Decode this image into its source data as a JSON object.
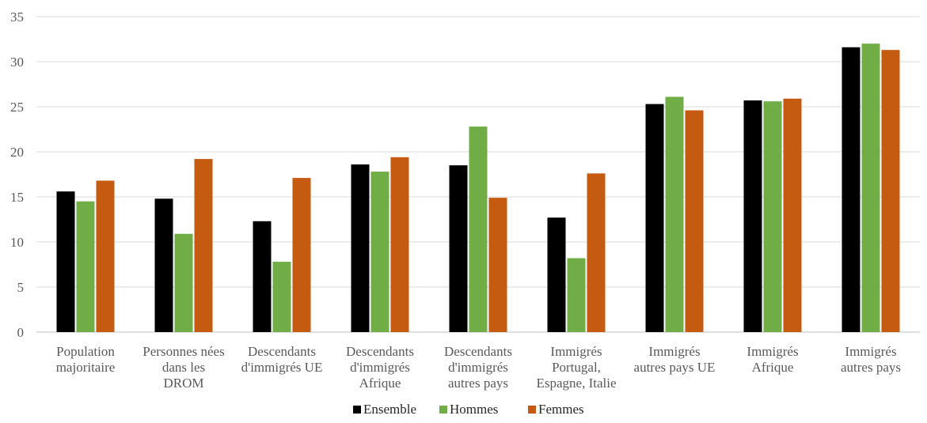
{
  "chart_data": {
    "type": "bar",
    "categories": [
      [
        "Population",
        "majoritaire"
      ],
      [
        "Personnes nées",
        "dans les",
        "DROM"
      ],
      [
        "Descendants",
        "d'immigrés UE"
      ],
      [
        "Descendants",
        "d'immigrés",
        "Afrique"
      ],
      [
        "Descendants",
        "d'immigrés",
        "autres pays"
      ],
      [
        "Immigrés",
        "Portugal,",
        "Espagne, Italie"
      ],
      [
        "Immigrés",
        "autres pays UE"
      ],
      [
        "Immigrés",
        "Afrique"
      ],
      [
        "Immigrés",
        "autres pays"
      ]
    ],
    "series": [
      {
        "name": "Ensemble",
        "color": "#000000",
        "values": [
          15.6,
          14.8,
          12.3,
          18.6,
          18.5,
          12.7,
          25.3,
          25.7,
          31.6
        ]
      },
      {
        "name": "Hommes",
        "color": "#70ad47",
        "values": [
          14.5,
          10.9,
          7.8,
          17.8,
          22.8,
          8.2,
          26.1,
          25.6,
          32.0
        ]
      },
      {
        "name": "Femmes",
        "color": "#c55a11",
        "values": [
          16.8,
          19.2,
          17.1,
          19.4,
          14.9,
          17.6,
          24.6,
          25.9,
          31.3
        ]
      }
    ],
    "ylim": [
      0,
      35
    ],
    "yticks": [
      0,
      5,
      10,
      15,
      20,
      25,
      30,
      35
    ],
    "grid": true,
    "legend_position": "bottom",
    "title": "",
    "xlabel": "",
    "ylabel": ""
  }
}
